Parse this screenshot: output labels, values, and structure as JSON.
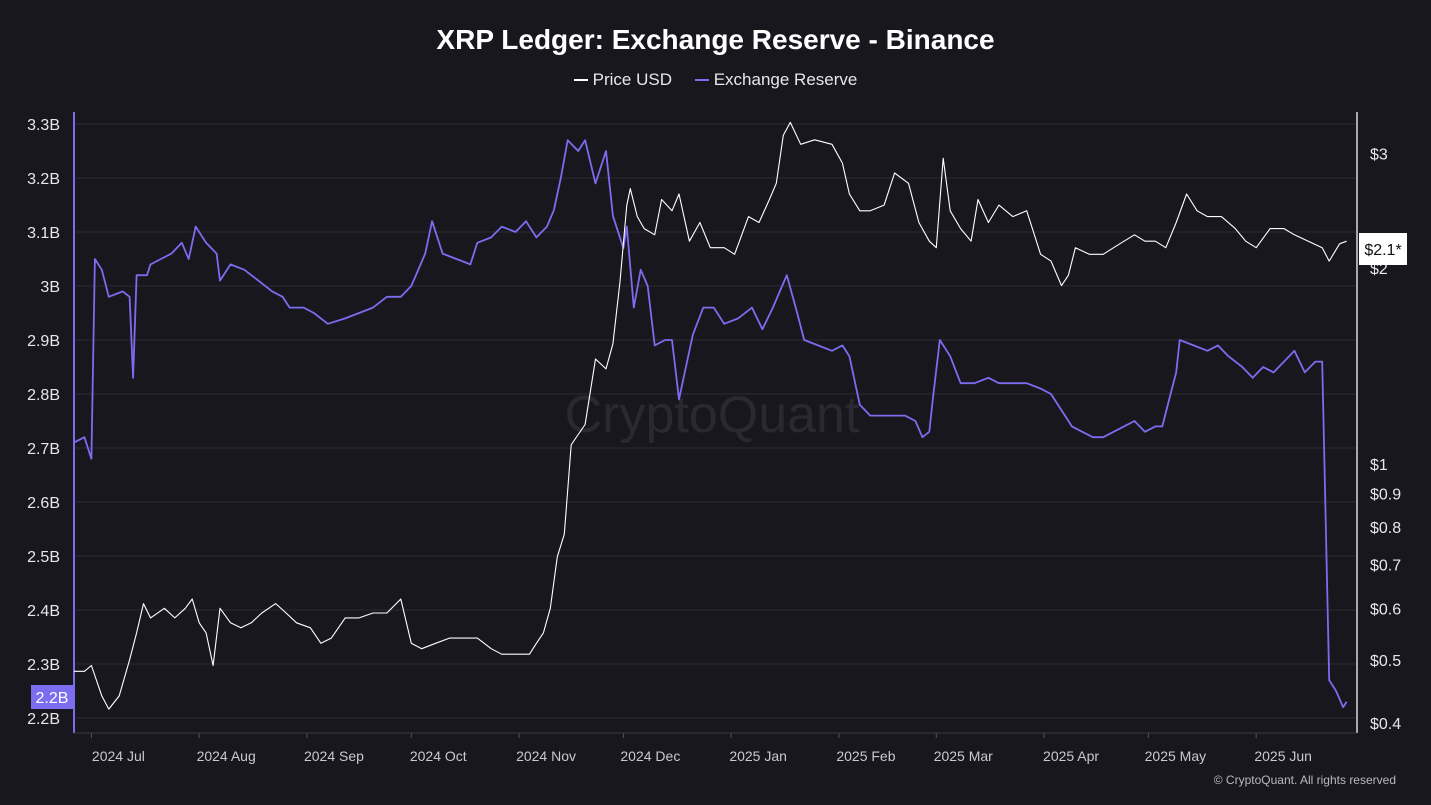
{
  "chart_data": {
    "type": "line",
    "title": "XRP Ledger: Exchange Reserve - Binance",
    "legend": [
      {
        "name": "Price USD",
        "color": "#ffffff"
      },
      {
        "name": "Exchange Reserve",
        "color": "#7b6cf0"
      }
    ],
    "x_ticks": [
      "2024 Jul",
      "2024 Aug",
      "2024 Sep",
      "2024 Oct",
      "2024 Nov",
      "2024 Dec",
      "2025 Jan",
      "2025 Feb",
      "2025 Mar",
      "2025 Apr",
      "2025 May",
      "2025 Jun"
    ],
    "x_tick_dates": [
      "2024-07-01",
      "2024-08-01",
      "2024-09-01",
      "2024-10-01",
      "2024-11-01",
      "2024-12-01",
      "2025-01-01",
      "2025-02-01",
      "2025-03-01",
      "2025-04-01",
      "2025-05-01",
      "2025-06-01"
    ],
    "x_range": [
      "2024-06-26",
      "2025-06-30"
    ],
    "left_axis": {
      "ticks": [
        "3.3B",
        "3.2B",
        "3.1B",
        "3B",
        "2.9B",
        "2.8B",
        "2.7B",
        "2.6B",
        "2.5B",
        "2.4B",
        "2.3B",
        "2.2B"
      ],
      "tick_values": [
        3.3,
        3.2,
        3.1,
        3.0,
        2.9,
        2.8,
        2.7,
        2.6,
        2.5,
        2.4,
        2.3,
        2.2
      ],
      "range": [
        2.2,
        3.3
      ],
      "unit": "B",
      "current_label": "2.2B"
    },
    "right_axis": {
      "scale": "log",
      "ticks": [
        "$3",
        "$2",
        "$1",
        "$0.9",
        "$0.8",
        "$0.7",
        "$0.6",
        "$0.5",
        "$0.4"
      ],
      "tick_values": [
        3,
        2,
        1,
        0.9,
        0.8,
        0.7,
        0.6,
        0.5,
        0.4
      ],
      "range": [
        0.39,
        3.5
      ],
      "current_label": "$2.1*"
    },
    "grid": true,
    "series": [
      {
        "name": "Exchange Reserve",
        "axis": "left",
        "color": "#7b6cf0",
        "points": [
          [
            "2024-06-26",
            2.71
          ],
          [
            "2024-06-29",
            2.72
          ],
          [
            "2024-07-01",
            2.68
          ],
          [
            "2024-07-02",
            3.05
          ],
          [
            "2024-07-04",
            3.03
          ],
          [
            "2024-07-06",
            2.98
          ],
          [
            "2024-07-10",
            2.99
          ],
          [
            "2024-07-12",
            2.98
          ],
          [
            "2024-07-13",
            2.83
          ],
          [
            "2024-07-14",
            3.02
          ],
          [
            "2024-07-17",
            3.02
          ],
          [
            "2024-07-18",
            3.04
          ],
          [
            "2024-07-21",
            3.05
          ],
          [
            "2024-07-24",
            3.06
          ],
          [
            "2024-07-27",
            3.08
          ],
          [
            "2024-07-29",
            3.05
          ],
          [
            "2024-07-31",
            3.11
          ],
          [
            "2024-08-03",
            3.08
          ],
          [
            "2024-08-06",
            3.06
          ],
          [
            "2024-08-07",
            3.01
          ],
          [
            "2024-08-10",
            3.04
          ],
          [
            "2024-08-14",
            3.03
          ],
          [
            "2024-08-18",
            3.01
          ],
          [
            "2024-08-22",
            2.99
          ],
          [
            "2024-08-25",
            2.98
          ],
          [
            "2024-08-27",
            2.96
          ],
          [
            "2024-08-31",
            2.96
          ],
          [
            "2024-09-03",
            2.95
          ],
          [
            "2024-09-07",
            2.93
          ],
          [
            "2024-09-12",
            2.94
          ],
          [
            "2024-09-16",
            2.95
          ],
          [
            "2024-09-20",
            2.96
          ],
          [
            "2024-09-24",
            2.98
          ],
          [
            "2024-09-28",
            2.98
          ],
          [
            "2024-10-01",
            3.0
          ],
          [
            "2024-10-05",
            3.06
          ],
          [
            "2024-10-07",
            3.12
          ],
          [
            "2024-10-10",
            3.06
          ],
          [
            "2024-10-14",
            3.05
          ],
          [
            "2024-10-18",
            3.04
          ],
          [
            "2024-10-20",
            3.08
          ],
          [
            "2024-10-24",
            3.09
          ],
          [
            "2024-10-27",
            3.11
          ],
          [
            "2024-10-31",
            3.1
          ],
          [
            "2024-11-03",
            3.12
          ],
          [
            "2024-11-06",
            3.09
          ],
          [
            "2024-11-09",
            3.11
          ],
          [
            "2024-11-11",
            3.14
          ],
          [
            "2024-11-13",
            3.2
          ],
          [
            "2024-11-15",
            3.27
          ],
          [
            "2024-11-18",
            3.25
          ],
          [
            "2024-11-20",
            3.27
          ],
          [
            "2024-11-23",
            3.19
          ],
          [
            "2024-11-26",
            3.25
          ],
          [
            "2024-11-28",
            3.13
          ],
          [
            "2024-12-01",
            3.07
          ],
          [
            "2024-12-02",
            3.11
          ],
          [
            "2024-12-04",
            2.96
          ],
          [
            "2024-12-06",
            3.03
          ],
          [
            "2024-12-08",
            3.0
          ],
          [
            "2024-12-10",
            2.89
          ],
          [
            "2024-12-13",
            2.9
          ],
          [
            "2024-12-15",
            2.9
          ],
          [
            "2024-12-17",
            2.79
          ],
          [
            "2024-12-19",
            2.85
          ],
          [
            "2024-12-21",
            2.91
          ],
          [
            "2024-12-24",
            2.96
          ],
          [
            "2024-12-27",
            2.96
          ],
          [
            "2024-12-30",
            2.93
          ],
          [
            "2025-01-03",
            2.94
          ],
          [
            "2025-01-07",
            2.96
          ],
          [
            "2025-01-10",
            2.92
          ],
          [
            "2025-01-13",
            2.96
          ],
          [
            "2025-01-15",
            2.99
          ],
          [
            "2025-01-17",
            3.02
          ],
          [
            "2025-01-20",
            2.95
          ],
          [
            "2025-01-22",
            2.9
          ],
          [
            "2025-01-26",
            2.89
          ],
          [
            "2025-01-30",
            2.88
          ],
          [
            "2025-02-02",
            2.89
          ],
          [
            "2025-02-04",
            2.87
          ],
          [
            "2025-02-07",
            2.78
          ],
          [
            "2025-02-10",
            2.76
          ],
          [
            "2025-02-13",
            2.76
          ],
          [
            "2025-02-17",
            2.76
          ],
          [
            "2025-02-20",
            2.76
          ],
          [
            "2025-02-23",
            2.75
          ],
          [
            "2025-02-25",
            2.72
          ],
          [
            "2025-02-27",
            2.73
          ],
          [
            "2025-02-28",
            2.79
          ],
          [
            "2025-03-02",
            2.9
          ],
          [
            "2025-03-05",
            2.87
          ],
          [
            "2025-03-08",
            2.82
          ],
          [
            "2025-03-12",
            2.82
          ],
          [
            "2025-03-16",
            2.83
          ],
          [
            "2025-03-19",
            2.82
          ],
          [
            "2025-03-23",
            2.82
          ],
          [
            "2025-03-27",
            2.82
          ],
          [
            "2025-03-31",
            2.81
          ],
          [
            "2025-04-03",
            2.8
          ],
          [
            "2025-04-06",
            2.77
          ],
          [
            "2025-04-09",
            2.74
          ],
          [
            "2025-04-12",
            2.73
          ],
          [
            "2025-04-15",
            2.72
          ],
          [
            "2025-04-18",
            2.72
          ],
          [
            "2025-04-21",
            2.73
          ],
          [
            "2025-04-24",
            2.74
          ],
          [
            "2025-04-27",
            2.75
          ],
          [
            "2025-04-30",
            2.73
          ],
          [
            "2025-05-03",
            2.74
          ],
          [
            "2025-05-05",
            2.74
          ],
          [
            "2025-05-07",
            2.79
          ],
          [
            "2025-05-09",
            2.84
          ],
          [
            "2025-05-10",
            2.9
          ],
          [
            "2025-05-14",
            2.89
          ],
          [
            "2025-05-18",
            2.88
          ],
          [
            "2025-05-21",
            2.89
          ],
          [
            "2025-05-24",
            2.87
          ],
          [
            "2025-05-28",
            2.85
          ],
          [
            "2025-05-31",
            2.83
          ],
          [
            "2025-06-03",
            2.85
          ],
          [
            "2025-06-06",
            2.84
          ],
          [
            "2025-06-09",
            2.86
          ],
          [
            "2025-06-12",
            2.88
          ],
          [
            "2025-06-15",
            2.84
          ],
          [
            "2025-06-18",
            2.86
          ],
          [
            "2025-06-20",
            2.86
          ],
          [
            "2025-06-22",
            2.27
          ],
          [
            "2025-06-24",
            2.25
          ],
          [
            "2025-06-26",
            2.22
          ],
          [
            "2025-06-27",
            2.23
          ]
        ]
      },
      {
        "name": "Price USD",
        "axis": "right",
        "color": "#ffffff",
        "points": [
          [
            "2024-06-26",
            0.48
          ],
          [
            "2024-06-29",
            0.48
          ],
          [
            "2024-07-01",
            0.49
          ],
          [
            "2024-07-04",
            0.44
          ],
          [
            "2024-07-06",
            0.42
          ],
          [
            "2024-07-09",
            0.44
          ],
          [
            "2024-07-12",
            0.5
          ],
          [
            "2024-07-14",
            0.55
          ],
          [
            "2024-07-16",
            0.61
          ],
          [
            "2024-07-18",
            0.58
          ],
          [
            "2024-07-22",
            0.6
          ],
          [
            "2024-07-25",
            0.58
          ],
          [
            "2024-07-28",
            0.6
          ],
          [
            "2024-07-30",
            0.62
          ],
          [
            "2024-08-01",
            0.57
          ],
          [
            "2024-08-03",
            0.55
          ],
          [
            "2024-08-05",
            0.49
          ],
          [
            "2024-08-07",
            0.6
          ],
          [
            "2024-08-10",
            0.57
          ],
          [
            "2024-08-13",
            0.56
          ],
          [
            "2024-08-16",
            0.57
          ],
          [
            "2024-08-19",
            0.59
          ],
          [
            "2024-08-23",
            0.61
          ],
          [
            "2024-08-26",
            0.59
          ],
          [
            "2024-08-29",
            0.57
          ],
          [
            "2024-09-02",
            0.56
          ],
          [
            "2024-09-05",
            0.53
          ],
          [
            "2024-09-08",
            0.54
          ],
          [
            "2024-09-12",
            0.58
          ],
          [
            "2024-09-16",
            0.58
          ],
          [
            "2024-09-20",
            0.59
          ],
          [
            "2024-09-24",
            0.59
          ],
          [
            "2024-09-28",
            0.62
          ],
          [
            "2024-10-01",
            0.53
          ],
          [
            "2024-10-04",
            0.52
          ],
          [
            "2024-10-08",
            0.53
          ],
          [
            "2024-10-12",
            0.54
          ],
          [
            "2024-10-16",
            0.54
          ],
          [
            "2024-10-20",
            0.54
          ],
          [
            "2024-10-24",
            0.52
          ],
          [
            "2024-10-27",
            0.51
          ],
          [
            "2024-10-31",
            0.51
          ],
          [
            "2024-11-02",
            0.51
          ],
          [
            "2024-11-04",
            0.51
          ],
          [
            "2024-11-06",
            0.53
          ],
          [
            "2024-11-08",
            0.55
          ],
          [
            "2024-11-10",
            0.6
          ],
          [
            "2024-11-12",
            0.72
          ],
          [
            "2024-11-14",
            0.78
          ],
          [
            "2024-11-16",
            1.07
          ],
          [
            "2024-11-18",
            1.11
          ],
          [
            "2024-11-20",
            1.15
          ],
          [
            "2024-11-23",
            1.45
          ],
          [
            "2024-11-26",
            1.4
          ],
          [
            "2024-11-28",
            1.53
          ],
          [
            "2024-11-30",
            1.9
          ],
          [
            "2024-12-02",
            2.5
          ],
          [
            "2024-12-03",
            2.65
          ],
          [
            "2024-12-05",
            2.4
          ],
          [
            "2024-12-07",
            2.3
          ],
          [
            "2024-12-10",
            2.25
          ],
          [
            "2024-12-12",
            2.55
          ],
          [
            "2024-12-15",
            2.45
          ],
          [
            "2024-12-17",
            2.6
          ],
          [
            "2024-12-20",
            2.2
          ],
          [
            "2024-12-23",
            2.35
          ],
          [
            "2024-12-26",
            2.15
          ],
          [
            "2024-12-30",
            2.15
          ],
          [
            "2025-01-02",
            2.1
          ],
          [
            "2025-01-06",
            2.4
          ],
          [
            "2025-01-09",
            2.35
          ],
          [
            "2025-01-12",
            2.55
          ],
          [
            "2025-01-14",
            2.7
          ],
          [
            "2025-01-16",
            3.2
          ],
          [
            "2025-01-18",
            3.35
          ],
          [
            "2025-01-21",
            3.1
          ],
          [
            "2025-01-25",
            3.15
          ],
          [
            "2025-01-30",
            3.1
          ],
          [
            "2025-02-02",
            2.9
          ],
          [
            "2025-02-04",
            2.6
          ],
          [
            "2025-02-07",
            2.45
          ],
          [
            "2025-02-10",
            2.45
          ],
          [
            "2025-02-14",
            2.5
          ],
          [
            "2025-02-17",
            2.8
          ],
          [
            "2025-02-21",
            2.7
          ],
          [
            "2025-02-24",
            2.35
          ],
          [
            "2025-02-27",
            2.2
          ],
          [
            "2025-03-01",
            2.15
          ],
          [
            "2025-03-03",
            2.95
          ],
          [
            "2025-03-05",
            2.45
          ],
          [
            "2025-03-08",
            2.3
          ],
          [
            "2025-03-11",
            2.2
          ],
          [
            "2025-03-13",
            2.55
          ],
          [
            "2025-03-16",
            2.35
          ],
          [
            "2025-03-19",
            2.5
          ],
          [
            "2025-03-23",
            2.4
          ],
          [
            "2025-03-27",
            2.45
          ],
          [
            "2025-03-31",
            2.1
          ],
          [
            "2025-04-03",
            2.05
          ],
          [
            "2025-04-06",
            1.88
          ],
          [
            "2025-04-08",
            1.95
          ],
          [
            "2025-04-10",
            2.15
          ],
          [
            "2025-04-14",
            2.1
          ],
          [
            "2025-04-18",
            2.1
          ],
          [
            "2025-04-21",
            2.15
          ],
          [
            "2025-04-24",
            2.2
          ],
          [
            "2025-04-27",
            2.25
          ],
          [
            "2025-04-30",
            2.2
          ],
          [
            "2025-05-03",
            2.2
          ],
          [
            "2025-05-06",
            2.15
          ],
          [
            "2025-05-09",
            2.35
          ],
          [
            "2025-05-12",
            2.6
          ],
          [
            "2025-05-15",
            2.45
          ],
          [
            "2025-05-18",
            2.4
          ],
          [
            "2025-05-22",
            2.4
          ],
          [
            "2025-05-26",
            2.3
          ],
          [
            "2025-05-29",
            2.2
          ],
          [
            "2025-06-01",
            2.15
          ],
          [
            "2025-06-05",
            2.3
          ],
          [
            "2025-06-09",
            2.3
          ],
          [
            "2025-06-12",
            2.25
          ],
          [
            "2025-06-16",
            2.2
          ],
          [
            "2025-06-20",
            2.15
          ],
          [
            "2025-06-22",
            2.05
          ],
          [
            "2025-06-25",
            2.18
          ],
          [
            "2025-06-27",
            2.2
          ]
        ]
      }
    ]
  },
  "watermark": "CryptoQuant",
  "copyright": "© CryptoQuant. All rights reserved"
}
